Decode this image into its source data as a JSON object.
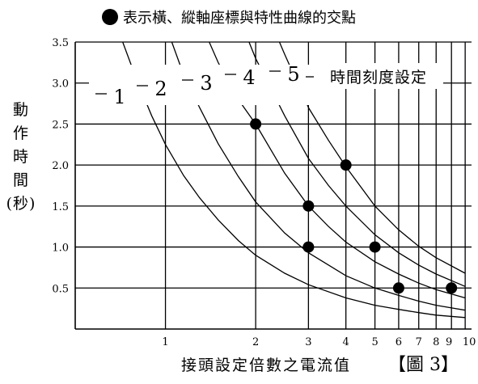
{
  "legend_text": "表示橫、縱軸座標與特性曲線的交點",
  "y_axis_label_lines": [
    "動",
    "作",
    "時",
    "間",
    "(秒)"
  ],
  "x_axis_label": "接頭設定倍數之電流值",
  "figure_label": "【圖 3】",
  "time_setting_label": "時間刻度設定",
  "chart_data": {
    "type": "line",
    "xlabel": "接頭設定倍數之電流值",
    "ylabel": "動作時間(秒)",
    "x_scale": "log",
    "xlim": [
      0.5,
      10.5
    ],
    "ylim": [
      0.0,
      3.5
    ],
    "x_ticks": [
      1,
      2,
      3,
      4,
      5,
      6,
      7,
      8,
      9,
      10
    ],
    "x_tick_labels": [
      "1",
      "2",
      "3",
      "4",
      "5",
      "6",
      "7",
      "8",
      "9",
      "10"
    ],
    "y_ticks": [
      0.5,
      1.0,
      1.5,
      2.0,
      2.5,
      3.0,
      3.5
    ],
    "y_tick_labels": [
      "0.5",
      "1.0",
      "1.5",
      "2.0",
      "2.5",
      "3.0",
      "3.5"
    ],
    "grid": true,
    "series": [
      {
        "name": "1",
        "x": [
          0.72,
          0.8,
          0.9,
          1.0,
          1.15,
          1.3,
          1.5,
          1.75,
          2.0,
          2.5,
          3.0,
          4.0,
          5.0,
          6.0,
          7.0,
          8.0,
          10.0
        ],
        "y": [
          3.5,
          3.05,
          2.6,
          2.25,
          1.87,
          1.6,
          1.33,
          1.08,
          0.9,
          0.68,
          0.54,
          0.38,
          0.29,
          0.24,
          0.2,
          0.17,
          0.14
        ]
      },
      {
        "name": "2",
        "x": [
          1.05,
          1.15,
          1.3,
          1.5,
          1.75,
          2.0,
          2.5,
          3.0,
          4.0,
          5.0,
          6.0,
          7.0,
          8.0,
          10.0
        ],
        "y": [
          3.5,
          3.1,
          2.7,
          2.26,
          1.86,
          1.55,
          1.17,
          0.93,
          0.65,
          0.5,
          0.41,
          0.34,
          0.29,
          0.23
        ]
      },
      {
        "name": "3",
        "x": [
          1.4,
          1.5,
          1.75,
          2.0,
          2.5,
          3.0,
          3.5,
          4.0,
          5.0,
          6.0,
          7.0,
          8.0,
          10.0
        ],
        "y": [
          3.5,
          3.25,
          2.8,
          2.5,
          1.9,
          1.5,
          1.25,
          1.06,
          0.82,
          0.67,
          0.56,
          0.48,
          0.38
        ]
      },
      {
        "name": "4",
        "x": [
          1.9,
          2.0,
          2.5,
          3.0,
          3.5,
          4.0,
          5.0,
          6.0,
          7.0,
          8.0,
          10.0
        ],
        "y": [
          3.5,
          3.3,
          2.6,
          2.08,
          1.75,
          1.5,
          1.15,
          0.93,
          0.78,
          0.67,
          0.52
        ]
      },
      {
        "name": "5",
        "x": [
          2.4,
          2.5,
          3.0,
          3.5,
          4.0,
          5.0,
          6.0,
          7.0,
          8.0,
          10.0
        ],
        "y": [
          3.5,
          3.35,
          2.7,
          2.3,
          1.98,
          1.5,
          1.21,
          1.01,
          0.87,
          0.68
        ]
      }
    ],
    "points": [
      {
        "x": 2,
        "y": 2.5
      },
      {
        "x": 3,
        "y": 1.5
      },
      {
        "x": 3,
        "y": 1.0
      },
      {
        "x": 4,
        "y": 2.0
      },
      {
        "x": 5,
        "y": 1.0
      },
      {
        "x": 6,
        "y": 0.5
      },
      {
        "x": 9,
        "y": 0.5
      }
    ]
  }
}
